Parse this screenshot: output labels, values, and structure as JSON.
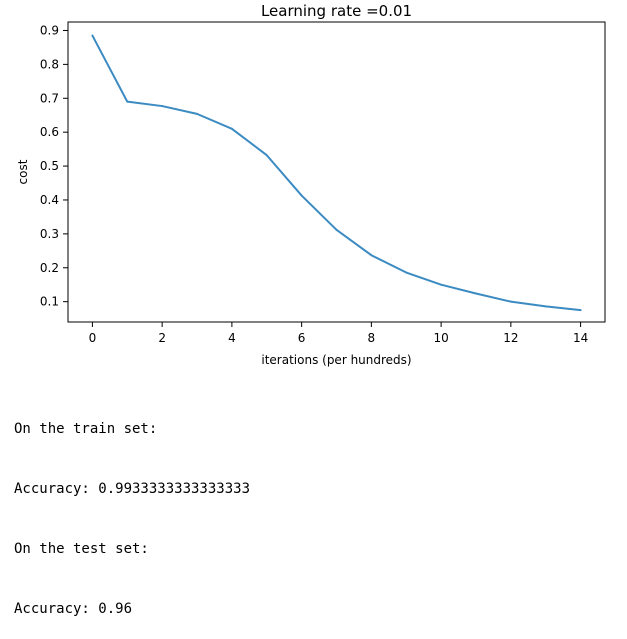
{
  "chart_data": {
    "type": "line",
    "title": "Learning rate =0.01",
    "xlabel": "iterations (per hundreds)",
    "ylabel": "cost",
    "xlim": [
      -0.7,
      14.7
    ],
    "ylim": [
      0.04,
      0.925
    ],
    "xticks": [
      0,
      2,
      4,
      6,
      8,
      10,
      12,
      14
    ],
    "yticks": [
      0.1,
      0.2,
      0.3,
      0.4,
      0.5,
      0.6,
      0.7,
      0.8,
      0.9
    ],
    "grid": false,
    "series": [
      {
        "color": "#3b8bc2",
        "x": [
          0,
          1,
          2,
          3,
          4,
          5,
          6,
          7,
          8,
          9,
          10,
          11,
          12,
          13,
          14
        ],
        "y": [
          0.885,
          0.69,
          0.677,
          0.654,
          0.61,
          0.532,
          0.413,
          0.312,
          0.237,
          0.186,
          0.15,
          0.124,
          0.1,
          0.086,
          0.075
        ]
      }
    ]
  },
  "output": {
    "lines": [
      "On the train set:",
      "Accuracy: 0.9933333333333333",
      "On the test set:",
      "Accuracy: 0.96"
    ]
  }
}
